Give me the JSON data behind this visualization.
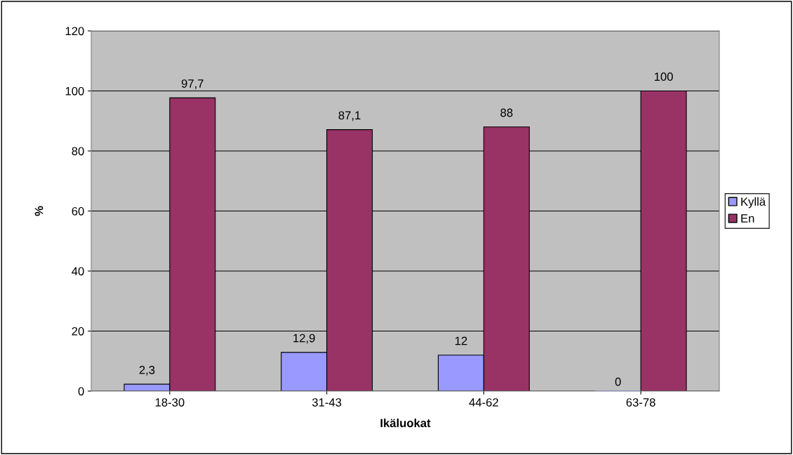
{
  "chart_data": {
    "type": "bar",
    "xlabel": "Ikäluokat",
    "ylabel": "%",
    "categories": [
      "18-30",
      "31-43",
      "44-62",
      "63-78"
    ],
    "series": [
      {
        "name": "Kyllä",
        "color": "#9999ff",
        "values": [
          2.3,
          12.9,
          12,
          0
        ],
        "value_labels": [
          "2,3",
          "12,9",
          "12",
          "0"
        ]
      },
      {
        "name": "En",
        "color": "#993366",
        "values": [
          97.7,
          87.1,
          88,
          100
        ],
        "value_labels": [
          "97,7",
          "87,1",
          "88",
          "100"
        ]
      }
    ],
    "ylim": [
      0,
      120
    ],
    "yticks": [
      0,
      20,
      40,
      60,
      80,
      100,
      120
    ],
    "grid": "y",
    "legend": "right"
  }
}
